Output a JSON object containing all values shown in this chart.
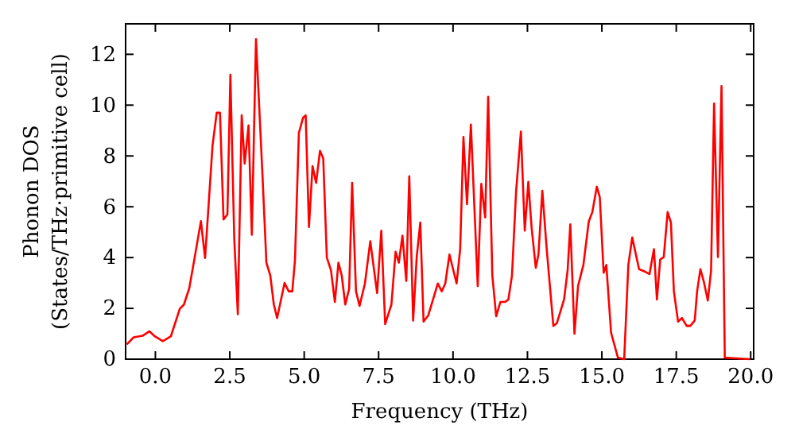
{
  "chart_data": {
    "type": "line",
    "xlabel": "Frequency (THz)",
    "ylabel": "Phonon DOS\n(States/THz·primitive cell)",
    "xlim": [
      -1,
      20.1
    ],
    "ylim": [
      0,
      13.2
    ],
    "xticks": [
      {
        "value": 0,
        "label": "0.0"
      },
      {
        "value": 2.5,
        "label": "2.5"
      },
      {
        "value": 5,
        "label": "5.0"
      },
      {
        "value": 7.5,
        "label": "7.5"
      },
      {
        "value": 10,
        "label": "10.0"
      },
      {
        "value": 12.5,
        "label": "12.5"
      },
      {
        "value": 15,
        "label": "15.0"
      },
      {
        "value": 17.5,
        "label": "17.5"
      },
      {
        "value": 20,
        "label": "20.0"
      }
    ],
    "yticks": [
      0,
      2,
      4,
      6,
      8,
      10,
      12
    ],
    "marker": "none",
    "line_style": "solid",
    "series": [
      {
        "color": "#ff0000",
        "x": [
          -0.96,
          -0.73,
          -0.43,
          -0.2,
          -0.02,
          0.25,
          0.52,
          0.82,
          0.96,
          1.14,
          1.32,
          1.53,
          1.67,
          1.92,
          2.06,
          2.17,
          2.29,
          2.42,
          2.52,
          2.65,
          2.77,
          2.9,
          3.0,
          3.13,
          3.24,
          3.38,
          3.59,
          3.73,
          3.86,
          3.98,
          4.09,
          4.34,
          4.48,
          4.6,
          4.69,
          4.82,
          4.96,
          5.05,
          5.16,
          5.28,
          5.4,
          5.53,
          5.64,
          5.76,
          5.9,
          6.03,
          6.15,
          6.26,
          6.38,
          6.51,
          6.61,
          6.74,
          6.86,
          7.04,
          7.22,
          7.45,
          7.59,
          7.72,
          7.93,
          8.07,
          8.18,
          8.3,
          8.43,
          8.53,
          8.66,
          8.78,
          8.9,
          9.01,
          9.17,
          9.49,
          9.62,
          9.74,
          9.88,
          10.12,
          10.24,
          10.35,
          10.47,
          10.6,
          10.83,
          10.95,
          11.08,
          11.18,
          11.32,
          11.45,
          11.59,
          11.75,
          11.86,
          11.98,
          12.12,
          12.28,
          12.41,
          12.53,
          12.64,
          12.78,
          12.87,
          13.0,
          13.14,
          13.37,
          13.49,
          13.73,
          13.85,
          13.94,
          14.08,
          14.2,
          14.38,
          14.56,
          14.68,
          14.83,
          14.93,
          15.06,
          15.15,
          15.31,
          15.54,
          15.75,
          15.89,
          16.02,
          16.25,
          16.46,
          16.6,
          16.75,
          16.85,
          16.96,
          17.08,
          17.21,
          17.32,
          17.42,
          17.56,
          17.69,
          17.85,
          17.97,
          18.12,
          18.2,
          18.31,
          18.42,
          18.56,
          18.67,
          18.77,
          18.9,
          19.02,
          19.13,
          19.98
        ],
        "values": [
          0.58,
          0.86,
          0.92,
          1.1,
          0.9,
          0.71,
          0.9,
          1.98,
          2.15,
          2.8,
          4.0,
          5.43,
          3.98,
          8.4,
          9.7,
          9.7,
          5.5,
          5.7,
          11.2,
          4.75,
          1.77,
          9.6,
          7.7,
          9.2,
          4.9,
          12.6,
          7.45,
          3.8,
          3.3,
          2.15,
          1.62,
          3.0,
          2.67,
          2.67,
          3.9,
          8.9,
          9.5,
          9.6,
          5.2,
          7.6,
          6.94,
          8.2,
          7.9,
          4.0,
          3.5,
          2.25,
          3.8,
          3.3,
          2.15,
          2.77,
          6.94,
          2.67,
          2.1,
          2.98,
          4.64,
          2.6,
          5.06,
          1.38,
          2.15,
          4.23,
          3.8,
          4.86,
          3.08,
          7.2,
          1.52,
          4.02,
          5.38,
          1.48,
          1.73,
          2.98,
          2.67,
          2.98,
          4.12,
          2.98,
          4.33,
          8.75,
          6.1,
          9.23,
          2.88,
          6.9,
          5.58,
          10.33,
          3.3,
          1.69,
          2.25,
          2.25,
          2.35,
          3.29,
          6.63,
          8.96,
          5.06,
          6.98,
          5.17,
          3.6,
          4.12,
          6.63,
          4.44,
          1.31,
          1.42,
          2.35,
          3.5,
          5.31,
          1.0,
          2.88,
          3.71,
          5.42,
          5.79,
          6.79,
          6.38,
          3.4,
          3.71,
          1.04,
          0.06,
          0,
          3.71,
          4.79,
          3.54,
          3.44,
          3.35,
          4.33,
          2.35,
          3.92,
          4.02,
          5.79,
          5.38,
          2.67,
          1.48,
          1.62,
          1.31,
          1.31,
          1.52,
          2.67,
          3.54,
          3.08,
          2.31,
          3.5,
          10.06,
          4.02,
          10.75,
          0.06,
          0
        ]
      }
    ]
  }
}
